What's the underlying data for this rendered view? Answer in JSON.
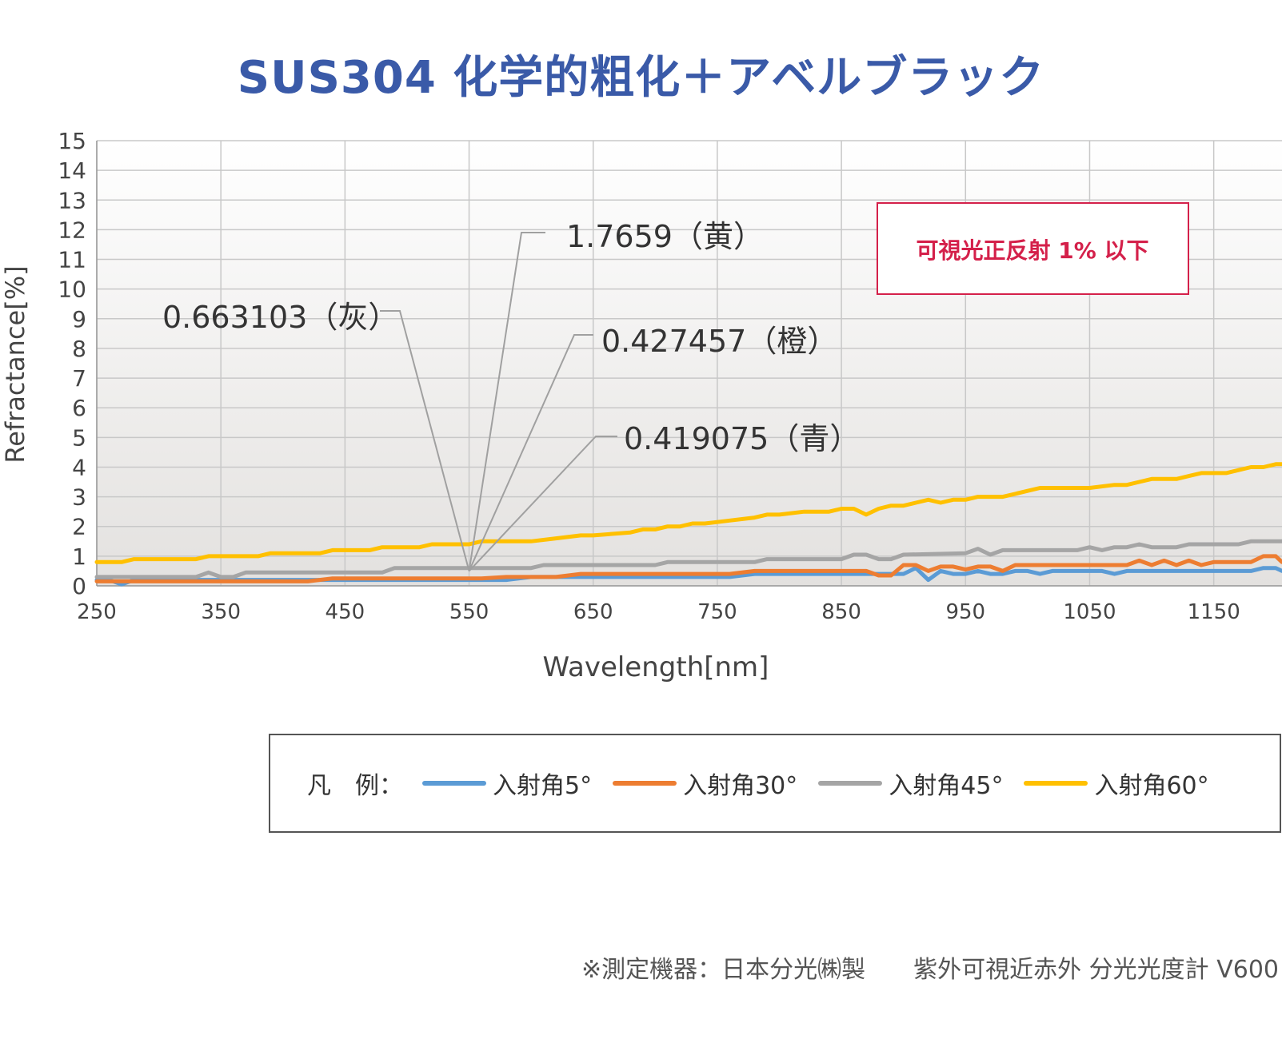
{
  "chart_data": {
    "type": "line",
    "title": "SUS304 化学的粗化＋アベルブラック",
    "xlabel": "Wavelength[nm]",
    "ylabel": "Refractance[%]",
    "xlim": [
      250,
      1205
    ],
    "ylim": [
      0,
      15
    ],
    "x_ticks": [
      250,
      350,
      450,
      550,
      650,
      750,
      850,
      950,
      1050,
      1150
    ],
    "y_ticks": [
      0,
      1,
      2,
      3,
      4,
      5,
      6,
      7,
      8,
      9,
      10,
      11,
      12,
      13,
      14,
      15
    ],
    "grid": true,
    "series": [
      {
        "name": "入射角5°",
        "color": "#5b9bd5",
        "x": [
          250,
          260,
          270,
          280,
          290,
          300,
          320,
          340,
          360,
          380,
          400,
          420,
          440,
          460,
          480,
          500,
          520,
          540,
          560,
          580,
          600,
          620,
          640,
          660,
          680,
          700,
          720,
          740,
          760,
          780,
          800,
          820,
          840,
          860,
          880,
          900,
          910,
          920,
          930,
          940,
          950,
          960,
          970,
          980,
          990,
          1000,
          1010,
          1020,
          1030,
          1040,
          1050,
          1060,
          1070,
          1080,
          1090,
          1100,
          1110,
          1120,
          1130,
          1140,
          1150,
          1160,
          1170,
          1180,
          1190,
          1200,
          1205
        ],
        "values": [
          0.2,
          0.2,
          0.05,
          0.2,
          0.2,
          0.2,
          0.2,
          0.2,
          0.2,
          0.2,
          0.2,
          0.2,
          0.2,
          0.2,
          0.2,
          0.2,
          0.2,
          0.2,
          0.2,
          0.2,
          0.3,
          0.3,
          0.3,
          0.3,
          0.3,
          0.3,
          0.3,
          0.3,
          0.3,
          0.4,
          0.4,
          0.4,
          0.4,
          0.4,
          0.4,
          0.4,
          0.6,
          0.2,
          0.5,
          0.4,
          0.4,
          0.5,
          0.4,
          0.4,
          0.5,
          0.5,
          0.4,
          0.5,
          0.5,
          0.5,
          0.5,
          0.5,
          0.4,
          0.5,
          0.5,
          0.5,
          0.5,
          0.5,
          0.5,
          0.5,
          0.5,
          0.5,
          0.5,
          0.5,
          0.6,
          0.6,
          0.5
        ]
      },
      {
        "name": "入射角30°",
        "color": "#ed7d31",
        "x": [
          250,
          300,
          350,
          400,
          420,
          440,
          460,
          480,
          500,
          520,
          540,
          560,
          580,
          600,
          620,
          640,
          660,
          680,
          700,
          720,
          740,
          760,
          780,
          800,
          820,
          840,
          860,
          870,
          880,
          890,
          900,
          910,
          920,
          930,
          940,
          950,
          960,
          970,
          980,
          990,
          1000,
          1020,
          1040,
          1060,
          1080,
          1090,
          1100,
          1110,
          1120,
          1130,
          1140,
          1150,
          1160,
          1170,
          1180,
          1190,
          1200,
          1205
        ],
        "values": [
          0.15,
          0.15,
          0.15,
          0.15,
          0.15,
          0.25,
          0.25,
          0.25,
          0.25,
          0.25,
          0.25,
          0.25,
          0.3,
          0.3,
          0.3,
          0.4,
          0.4,
          0.4,
          0.4,
          0.4,
          0.4,
          0.4,
          0.5,
          0.5,
          0.5,
          0.5,
          0.5,
          0.5,
          0.35,
          0.35,
          0.7,
          0.7,
          0.5,
          0.65,
          0.65,
          0.55,
          0.65,
          0.65,
          0.5,
          0.7,
          0.7,
          0.7,
          0.7,
          0.7,
          0.7,
          0.85,
          0.7,
          0.85,
          0.7,
          0.85,
          0.7,
          0.8,
          0.8,
          0.8,
          0.8,
          1.0,
          1.0,
          0.8
        ]
      },
      {
        "name": "入射角45°",
        "color": "#a5a5a5",
        "x": [
          250,
          280,
          300,
          330,
          340,
          350,
          360,
          370,
          380,
          400,
          450,
          480,
          490,
          500,
          550,
          600,
          610,
          650,
          700,
          710,
          750,
          780,
          790,
          800,
          850,
          860,
          870,
          880,
          890,
          900,
          950,
          960,
          970,
          980,
          1000,
          1040,
          1050,
          1060,
          1070,
          1080,
          1090,
          1100,
          1110,
          1120,
          1130,
          1150,
          1170,
          1180,
          1190,
          1205
        ],
        "values": [
          0.3,
          0.3,
          0.3,
          0.3,
          0.45,
          0.3,
          0.3,
          0.45,
          0.45,
          0.45,
          0.45,
          0.45,
          0.6,
          0.6,
          0.6,
          0.6,
          0.7,
          0.7,
          0.7,
          0.8,
          0.8,
          0.8,
          0.9,
          0.9,
          0.9,
          1.05,
          1.05,
          0.9,
          0.9,
          1.05,
          1.1,
          1.25,
          1.05,
          1.2,
          1.2,
          1.2,
          1.3,
          1.2,
          1.3,
          1.3,
          1.4,
          1.3,
          1.3,
          1.3,
          1.4,
          1.4,
          1.4,
          1.5,
          1.5,
          1.5
        ]
      },
      {
        "name": "入射角60°",
        "color": "#ffc000",
        "x": [
          250,
          270,
          280,
          300,
          330,
          340,
          350,
          380,
          390,
          400,
          430,
          440,
          450,
          470,
          480,
          490,
          510,
          520,
          530,
          550,
          560,
          600,
          620,
          640,
          650,
          680,
          690,
          700,
          710,
          720,
          730,
          740,
          760,
          780,
          790,
          800,
          820,
          830,
          840,
          850,
          860,
          870,
          880,
          890,
          900,
          910,
          920,
          930,
          940,
          950,
          960,
          970,
          980,
          990,
          1000,
          1010,
          1020,
          1050,
          1070,
          1080,
          1090,
          1100,
          1110,
          1120,
          1130,
          1140,
          1150,
          1160,
          1170,
          1180,
          1190,
          1200,
          1205
        ],
        "values": [
          0.8,
          0.8,
          0.9,
          0.9,
          0.9,
          1.0,
          1.0,
          1.0,
          1.1,
          1.1,
          1.1,
          1.2,
          1.2,
          1.2,
          1.3,
          1.3,
          1.3,
          1.4,
          1.4,
          1.4,
          1.5,
          1.5,
          1.6,
          1.7,
          1.7,
          1.8,
          1.9,
          1.9,
          2.0,
          2.0,
          2.1,
          2.1,
          2.2,
          2.3,
          2.4,
          2.4,
          2.5,
          2.5,
          2.5,
          2.6,
          2.6,
          2.4,
          2.6,
          2.7,
          2.7,
          2.8,
          2.9,
          2.8,
          2.9,
          2.9,
          3.0,
          3.0,
          3.0,
          3.1,
          3.2,
          3.3,
          3.3,
          3.3,
          3.4,
          3.4,
          3.5,
          3.6,
          3.6,
          3.6,
          3.7,
          3.8,
          3.8,
          3.8,
          3.9,
          4.0,
          4.0,
          4.1,
          4.1
        ]
      }
    ],
    "annotations": [
      {
        "text": "1.7659（黄）",
        "color": "yellow"
      },
      {
        "text": "0.663103（灰）",
        "color": "gray"
      },
      {
        "text": "0.427457（橙）",
        "color": "orange"
      },
      {
        "text": "0.419075（青）",
        "color": "blue"
      }
    ],
    "annotation_target_x": 550,
    "callout_box": "可視光正反射 1% 以下"
  },
  "legend": {
    "title": "凡　例：",
    "items": [
      "入射角5°",
      "入射角30°",
      "入射角45°",
      "入射角60°"
    ],
    "colors": [
      "#5b9bd5",
      "#ed7d31",
      "#a5a5a5",
      "#ffc000"
    ]
  },
  "footnote": "※測定機器：日本分光㈱製　　紫外可視近赤外 分光光度計 V600"
}
